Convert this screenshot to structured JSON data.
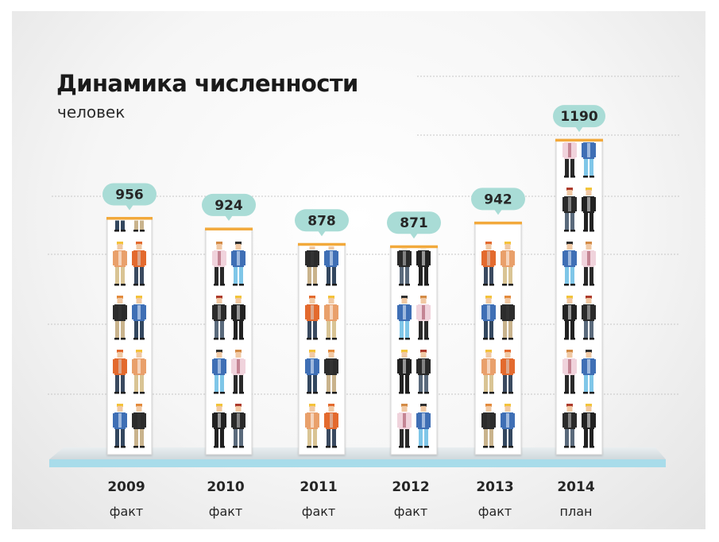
{
  "header": {
    "title": "Динамика численности",
    "subtitle": "человек"
  },
  "chart_data": {
    "type": "bar",
    "title": "Динамика численности",
    "ylabel": "человек",
    "categories": [
      "2009",
      "2010",
      "2011",
      "2012",
      "2013",
      "2014"
    ],
    "category_notes": [
      "факт",
      "факт",
      "факт",
      "факт",
      "факт",
      "план"
    ],
    "values": [
      956,
      924,
      878,
      871,
      942,
      1190
    ],
    "value_labels": [
      "956",
      "924",
      "878",
      "871",
      "942",
      "1190"
    ],
    "grid": true,
    "legend": "none",
    "colors": {
      "bar_top": "#f2a93b",
      "bubble": "#a9dcd6",
      "base": "#a8dcea",
      "grid": "#c7c7c7"
    },
    "icon": "worker-figure-icon"
  }
}
